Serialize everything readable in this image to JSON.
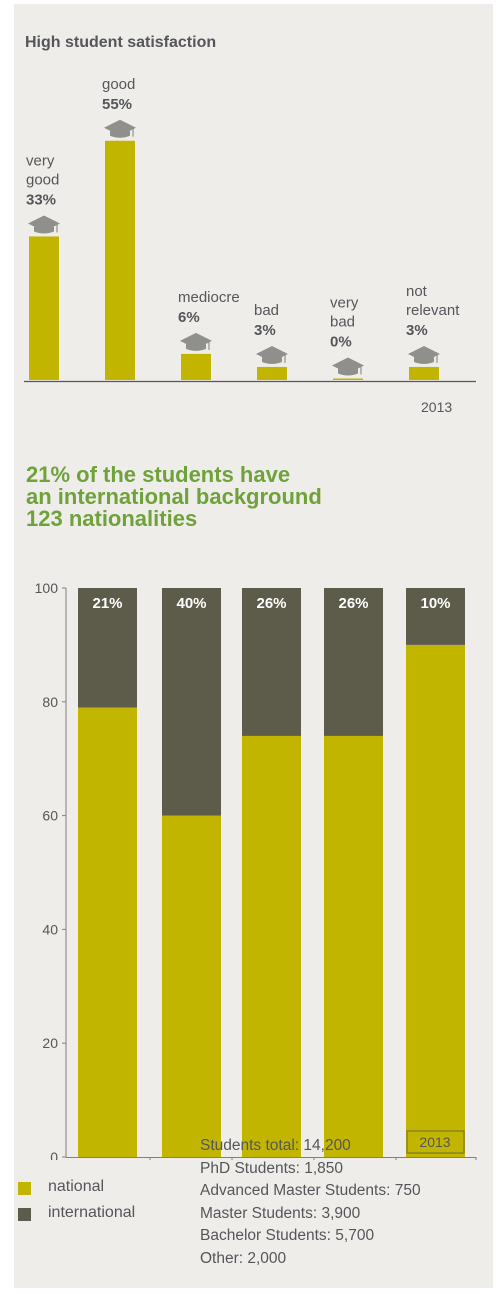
{
  "chart_data": [
    {
      "type": "bar",
      "title": "High student satisfaction",
      "categories": [
        "very good",
        "good",
        "mediocre",
        "bad",
        "very bad",
        "not relevant"
      ],
      "category_lines": [
        [
          "very",
          "good"
        ],
        [
          "good"
        ],
        [
          "mediocre"
        ],
        [
          "bad"
        ],
        [
          "very",
          "bad"
        ],
        [
          "not",
          "relevant"
        ]
      ],
      "values": [
        33,
        55,
        6,
        3,
        0,
        3
      ],
      "value_labels": [
        "33%",
        "55%",
        "6%",
        "3%",
        "0%",
        "3%"
      ],
      "year_label": "2013",
      "color": "#c2b500",
      "icon": "graduation-cap-icon"
    },
    {
      "type": "bar",
      "stacked": true,
      "title_lines": [
        "21% of the students have",
        "an international background",
        "123 nationalities"
      ],
      "categories": [
        "Students total",
        "PhD",
        "Advanced Master",
        "Master",
        "Bachelor"
      ],
      "category_lines": [
        [
          "Students total"
        ],
        [
          "PhD"
        ],
        [
          "Advanced",
          "Master"
        ],
        [
          "Master"
        ],
        [
          "Bachelor"
        ]
      ],
      "series": [
        {
          "name": "national",
          "values": [
            79,
            60,
            74,
            74,
            90
          ],
          "color": "#c2b500"
        },
        {
          "name": "international",
          "values": [
            21,
            40,
            26,
            26,
            10
          ],
          "color": "#5d5c4b"
        }
      ],
      "top_labels": [
        "21%",
        "40%",
        "26%",
        "26%",
        "10%"
      ],
      "ylim": [
        0,
        100
      ],
      "yticks": [
        "0",
        "20",
        "40",
        "60",
        "80",
        "100"
      ],
      "year_label": "2013"
    }
  ],
  "legend": [
    {
      "label": "national",
      "color": "#c2b500"
    },
    {
      "label": "international",
      "color": "#5d5c4b"
    }
  ],
  "notes": [
    "Students total: 14,200",
    "PhD Students: 1,850",
    "Advanced Master Students: 750",
    "Master Students: 3,900",
    "Bachelor Students: 5,700",
    "Other: 2,000"
  ]
}
